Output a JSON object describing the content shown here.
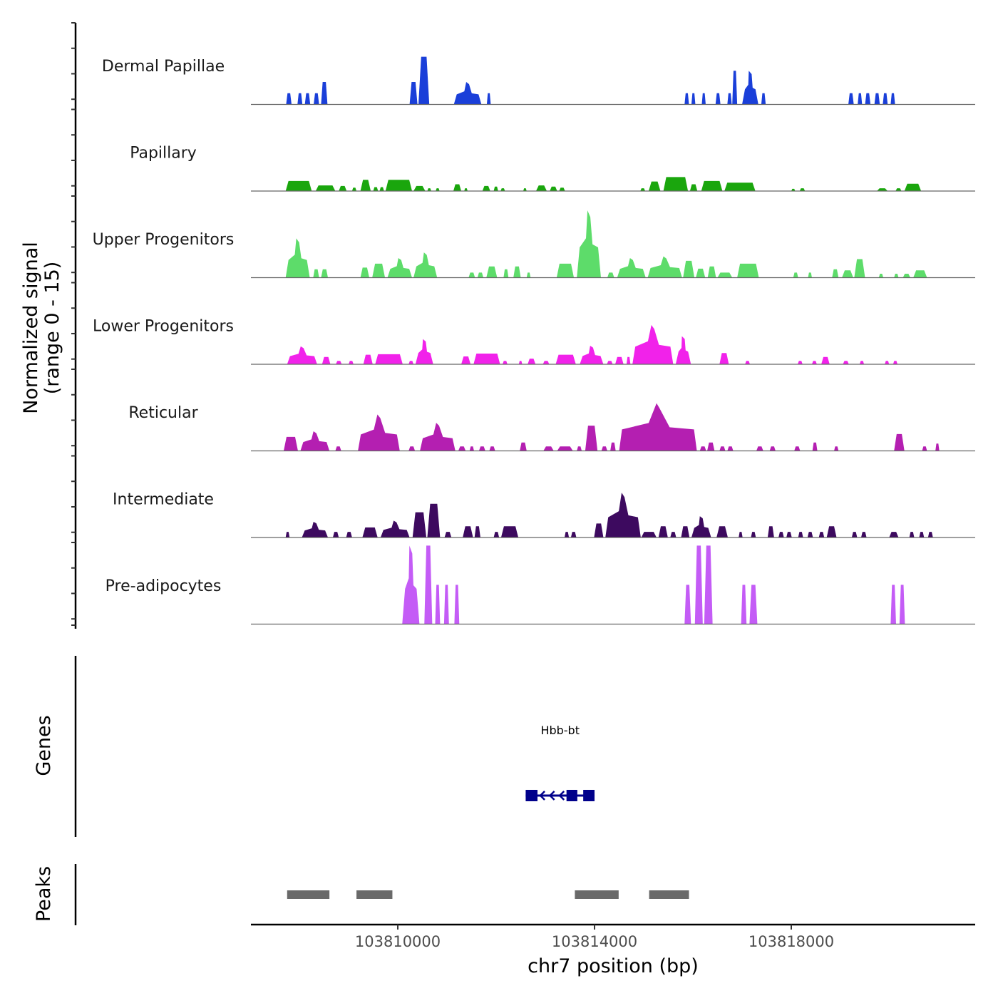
{
  "chart_data": {
    "type": "area",
    "title": "",
    "ylabel": "Normalized signal",
    "ylabel_sub": "(range 0 - 15)",
    "xlabel": "chr7 position (bp)",
    "xlim": [
      103807014,
      103821739
    ],
    "ylim": [
      0,
      15
    ],
    "x_ticks": [
      103810000,
      103814000,
      103818000
    ],
    "x_tick_labels": [
      "103810000",
      "103814000",
      "103818000"
    ],
    "grid": false,
    "legend": "none",
    "tracks": [
      {
        "name": "Dermal Papillae",
        "color": "#1a3fd9",
        "peaks": [
          [
            103807730,
            103807840,
            2.0
          ],
          [
            103807960,
            103808060,
            2.0
          ],
          [
            103808110,
            103808220,
            2.0
          ],
          [
            103808290,
            103808400,
            2.0
          ],
          [
            103808440,
            103808570,
            4.0
          ],
          [
            103810240,
            103810400,
            4.0
          ],
          [
            103810420,
            103810640,
            8.5
          ],
          [
            103811140,
            103811700,
            4.0
          ],
          [
            103811810,
            103811890,
            2.0
          ],
          [
            103815830,
            103815920,
            2.0
          ],
          [
            103815970,
            103816050,
            2.0
          ],
          [
            103816180,
            103816260,
            2.0
          ],
          [
            103816460,
            103816560,
            2.0
          ],
          [
            103816700,
            103816790,
            2.0
          ],
          [
            103816800,
            103816900,
            6.0
          ],
          [
            103817000,
            103817330,
            6.0
          ],
          [
            103817390,
            103817480,
            2.0
          ],
          [
            103819160,
            103819270,
            2.0
          ],
          [
            103819350,
            103819440,
            2.0
          ],
          [
            103819500,
            103819610,
            2.0
          ],
          [
            103819690,
            103819800,
            2.0
          ],
          [
            103819860,
            103819960,
            2.0
          ],
          [
            103820020,
            103820110,
            2.0
          ]
        ]
      },
      {
        "name": "Papillary",
        "color": "#1aa60d",
        "peaks": [
          [
            103807720,
            103808250,
            1.8
          ],
          [
            103808330,
            103808730,
            1.0
          ],
          [
            103808800,
            103808960,
            0.9
          ],
          [
            103809070,
            103809160,
            0.6
          ],
          [
            103809240,
            103809450,
            2.0
          ],
          [
            103809500,
            103809600,
            0.7
          ],
          [
            103809630,
            103809720,
            0.7
          ],
          [
            103809750,
            103810290,
            2.0
          ],
          [
            103810320,
            103810560,
            0.9
          ],
          [
            103810600,
            103810680,
            0.5
          ],
          [
            103810770,
            103810850,
            0.5
          ],
          [
            103811130,
            103811290,
            1.2
          ],
          [
            103811350,
            103811420,
            0.5
          ],
          [
            103811720,
            103811880,
            0.9
          ],
          [
            103811950,
            103812040,
            0.8
          ],
          [
            103812090,
            103812180,
            0.5
          ],
          [
            103812550,
            103812620,
            0.5
          ],
          [
            103812810,
            103813030,
            1.0
          ],
          [
            103813090,
            103813240,
            0.8
          ],
          [
            103813280,
            103813400,
            0.6
          ],
          [
            103814930,
            103815030,
            0.5
          ],
          [
            103815100,
            103815340,
            1.7
          ],
          [
            103815400,
            103815900,
            2.5
          ],
          [
            103815940,
            103816090,
            1.2
          ],
          [
            103816170,
            103816600,
            1.8
          ],
          [
            103816640,
            103817270,
            1.5
          ],
          [
            103818000,
            103818080,
            0.4
          ],
          [
            103818170,
            103818280,
            0.5
          ],
          [
            103819740,
            103819960,
            0.5
          ],
          [
            103820120,
            103820240,
            0.5
          ],
          [
            103820300,
            103820640,
            1.3
          ]
        ]
      },
      {
        "name": "Upper Progenitors",
        "color": "#5ddc6a",
        "peaks": [
          [
            103807720,
            103808210,
            7.0
          ],
          [
            103808280,
            103808400,
            1.5
          ],
          [
            103808440,
            103808580,
            1.5
          ],
          [
            103809240,
            103809420,
            1.8
          ],
          [
            103809480,
            103809740,
            2.5
          ],
          [
            103809790,
            103810290,
            3.5
          ],
          [
            103810320,
            103810800,
            4.5
          ],
          [
            103811440,
            103811570,
            0.9
          ],
          [
            103811620,
            103811740,
            0.9
          ],
          [
            103811800,
            103812020,
            2.0
          ],
          [
            103812150,
            103812250,
            1.5
          ],
          [
            103812350,
            103812500,
            2.0
          ],
          [
            103812620,
            103812700,
            0.9
          ],
          [
            103813230,
            103813580,
            2.5
          ],
          [
            103813640,
            103814130,
            12.0
          ],
          [
            103814260,
            103814400,
            0.9
          ],
          [
            103814460,
            103815040,
            3.5
          ],
          [
            103815080,
            103815780,
            3.8
          ],
          [
            103815800,
            103816030,
            3.0
          ],
          [
            103816060,
            103816250,
            1.6
          ],
          [
            103816300,
            103816470,
            2.0
          ],
          [
            103816500,
            103816800,
            0.9
          ],
          [
            103816900,
            103817340,
            2.5
          ],
          [
            103818040,
            103818140,
            0.9
          ],
          [
            103818340,
            103818420,
            0.9
          ],
          [
            103818830,
            103818960,
            1.5
          ],
          [
            103819030,
            103819260,
            1.3
          ],
          [
            103819280,
            103819500,
            3.3
          ],
          [
            103819780,
            103819870,
            0.7
          ],
          [
            103820090,
            103820180,
            0.7
          ],
          [
            103820270,
            103820420,
            0.7
          ],
          [
            103820480,
            103820760,
            1.3
          ]
        ]
      },
      {
        "name": "Lower Progenitors",
        "color": "#f122ea",
        "peaks": [
          [
            103807750,
            103808360,
            3.2
          ],
          [
            103808460,
            103808630,
            1.3
          ],
          [
            103808740,
            103808860,
            0.6
          ],
          [
            103809000,
            103809100,
            0.6
          ],
          [
            103809300,
            103809490,
            1.7
          ],
          [
            103809540,
            103810100,
            1.8
          ],
          [
            103810220,
            103810320,
            0.6
          ],
          [
            103810360,
            103810720,
            4.5
          ],
          [
            103811290,
            103811480,
            1.4
          ],
          [
            103811540,
            103812080,
            1.9
          ],
          [
            103812130,
            103812230,
            0.6
          ],
          [
            103812460,
            103812530,
            0.6
          ],
          [
            103812640,
            103812800,
            1.0
          ],
          [
            103812950,
            103813080,
            0.6
          ],
          [
            103813210,
            103813620,
            1.7
          ],
          [
            103813700,
            103814180,
            3.3
          ],
          [
            103814250,
            103814370,
            0.6
          ],
          [
            103814420,
            103814590,
            1.3
          ],
          [
            103814650,
            103814730,
            1.3
          ],
          [
            103814770,
            103815600,
            7.0
          ],
          [
            103815650,
            103815960,
            5.0
          ],
          [
            103016000,
            103016000,
            0.0
          ],
          [
            103816540,
            103816730,
            2.0
          ],
          [
            103817060,
            103817160,
            0.6
          ],
          [
            103818130,
            103818230,
            0.6
          ],
          [
            103818420,
            103818520,
            0.6
          ],
          [
            103818610,
            103818780,
            1.3
          ],
          [
            103819050,
            103819170,
            0.6
          ],
          [
            103819390,
            103819480,
            0.6
          ],
          [
            103819900,
            103819990,
            0.6
          ],
          [
            103820070,
            103820160,
            0.6
          ]
        ]
      },
      {
        "name": "Reticular",
        "color": "#b41fb1",
        "peaks": [
          [
            103807680,
            103807970,
            2.5
          ],
          [
            103808020,
            103808610,
            3.5
          ],
          [
            103808730,
            103808850,
            0.8
          ],
          [
            103809190,
            103810040,
            6.5
          ],
          [
            103810220,
            103810350,
            0.8
          ],
          [
            103810450,
            103811170,
            5.0
          ],
          [
            103811230,
            103811380,
            0.8
          ],
          [
            103811460,
            103811550,
            0.8
          ],
          [
            103811650,
            103811780,
            0.8
          ],
          [
            103811860,
            103811980,
            0.8
          ],
          [
            103812480,
            103812620,
            1.5
          ],
          [
            103812960,
            103813170,
            0.8
          ],
          [
            103813240,
            103813560,
            0.8
          ],
          [
            103813640,
            103813740,
            0.8
          ],
          [
            103813810,
            103814060,
            4.5
          ],
          [
            103814140,
            103814260,
            0.8
          ],
          [
            103814320,
            103814430,
            1.5
          ],
          [
            103814500,
            103816080,
            8.5
          ],
          [
            103816140,
            103816270,
            0.8
          ],
          [
            103816290,
            103816440,
            1.5
          ],
          [
            103816540,
            103816660,
            0.8
          ],
          [
            103816700,
            103816820,
            0.8
          ],
          [
            103817290,
            103817430,
            0.8
          ],
          [
            103817560,
            103817680,
            0.8
          ],
          [
            103818060,
            103818180,
            0.8
          ],
          [
            103818430,
            103818530,
            1.5
          ],
          [
            103818870,
            103818960,
            0.8
          ],
          [
            103820090,
            103820300,
            3.0
          ],
          [
            103820660,
            103820760,
            0.8
          ],
          [
            103820930,
            103821010,
            1.3
          ]
        ]
      },
      {
        "name": "Intermediate",
        "color": "#3d0a5f",
        "peaks": [
          [
            103807720,
            103807800,
            1.0
          ],
          [
            103808050,
            103808580,
            2.8
          ],
          [
            103808680,
            103808800,
            1.0
          ],
          [
            103808950,
            103809070,
            1.0
          ],
          [
            103809280,
            103809590,
            1.8
          ],
          [
            103809650,
            103810240,
            3.0
          ],
          [
            103810300,
            103810580,
            4.5
          ],
          [
            103810600,
            103810860,
            6.0
          ],
          [
            103810950,
            103811090,
            1.0
          ],
          [
            103811320,
            103811530,
            2.0
          ],
          [
            103811560,
            103811680,
            2.0
          ],
          [
            103811950,
            103812060,
            1.0
          ],
          [
            103812100,
            103812450,
            2.0
          ],
          [
            103813390,
            103813480,
            1.0
          ],
          [
            103813520,
            103813630,
            1.0
          ],
          [
            103813990,
            103814180,
            2.5
          ],
          [
            103814220,
            103814940,
            8.0
          ],
          [
            103814950,
            103815260,
            1.0
          ],
          [
            103815300,
            103815490,
            2.0
          ],
          [
            103815540,
            103815660,
            1.0
          ],
          [
            103815760,
            103815930,
            2.0
          ],
          [
            103815970,
            103816370,
            3.8
          ],
          [
            103816480,
            103816710,
            2.0
          ],
          [
            103816930,
            103817010,
            1.0
          ],
          [
            103817180,
            103817280,
            1.0
          ],
          [
            103817520,
            103817650,
            2.0
          ],
          [
            103817740,
            103817850,
            1.0
          ],
          [
            103817900,
            103818010,
            1.0
          ],
          [
            103818140,
            103818240,
            1.0
          ],
          [
            103818330,
            103818440,
            1.0
          ],
          [
            103818560,
            103818670,
            1.0
          ],
          [
            103818720,
            103818920,
            2.0
          ],
          [
            103819230,
            103819340,
            1.0
          ],
          [
            103819420,
            103819530,
            1.0
          ],
          [
            103819990,
            103820180,
            1.0
          ],
          [
            103820400,
            103820500,
            1.0
          ],
          [
            103820600,
            103820700,
            1.0
          ],
          [
            103820780,
            103820880,
            1.0
          ]
        ]
      },
      {
        "name": "Pre-adipocytes",
        "color": "#c45cf6",
        "peaks": [
          [
            103810090,
            103810440,
            14.0
          ],
          [
            103810540,
            103810700,
            14.0
          ],
          [
            103810760,
            103810860,
            7.0
          ],
          [
            103810940,
            103811040,
            7.0
          ],
          [
            103811150,
            103811250,
            7.0
          ],
          [
            103815830,
            103815960,
            7.0
          ],
          [
            103816040,
            103816200,
            14.0
          ],
          [
            103816230,
            103816400,
            14.0
          ],
          [
            103816980,
            103817090,
            7.0
          ],
          [
            103817150,
            103817310,
            7.0
          ],
          [
            103820020,
            103820130,
            7.0
          ],
          [
            103820200,
            103820310,
            7.0
          ]
        ]
      }
    ],
    "genes_panel": {
      "label": "Genes",
      "genes": [
        {
          "name": "Hbb-bt",
          "strand": "-",
          "color": "#00008b",
          "start": 103812600,
          "end": 103814000,
          "exons": [
            [
              103812600,
              103812840
            ],
            [
              103813430,
              103813650
            ],
            [
              103813770,
              103814000
            ]
          ]
        }
      ]
    },
    "peaks_panel": {
      "label": "Peaks",
      "color": "#696969",
      "peaks": [
        [
          103807750,
          103808610
        ],
        [
          103809160,
          103809890
        ],
        [
          103813600,
          103814490
        ],
        [
          103815110,
          103815920
        ]
      ]
    }
  }
}
